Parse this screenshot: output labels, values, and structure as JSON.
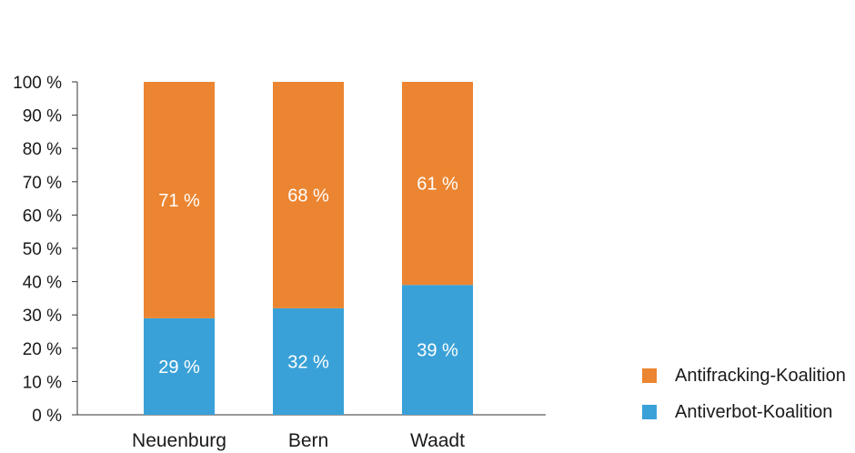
{
  "chart_data": {
    "type": "bar",
    "stacked": true,
    "categories": [
      "Neuenburg",
      "Bern",
      "Waadt"
    ],
    "series": [
      {
        "name": "Antiverbot-Koalition",
        "values": [
          29,
          32,
          39
        ],
        "color": "#3aa1d8",
        "labels": [
          "29 %",
          "32 %",
          "39 %"
        ]
      },
      {
        "name": "Antifracking-Koalition",
        "values": [
          71,
          68,
          61
        ],
        "color": "#eb8531",
        "labels": [
          "71 %",
          "68 %",
          "61 %"
        ]
      }
    ],
    "yticks": [
      0,
      10,
      20,
      30,
      40,
      50,
      60,
      70,
      80,
      90,
      100
    ],
    "ytick_labels": [
      "0 %",
      "10 %",
      "20 %",
      "30 %",
      "40 %",
      "50 %",
      "60 %",
      "70 %",
      "80 %",
      "90 %",
      "100 %"
    ],
    "ylim": [
      0,
      100
    ],
    "legend_position": "bottom-right"
  },
  "legend": {
    "items": [
      {
        "label": "Antifracking-Koalition",
        "color": "#eb8531"
      },
      {
        "label": "Antiverbot-Koalition",
        "color": "#3aa1d8"
      }
    ]
  }
}
